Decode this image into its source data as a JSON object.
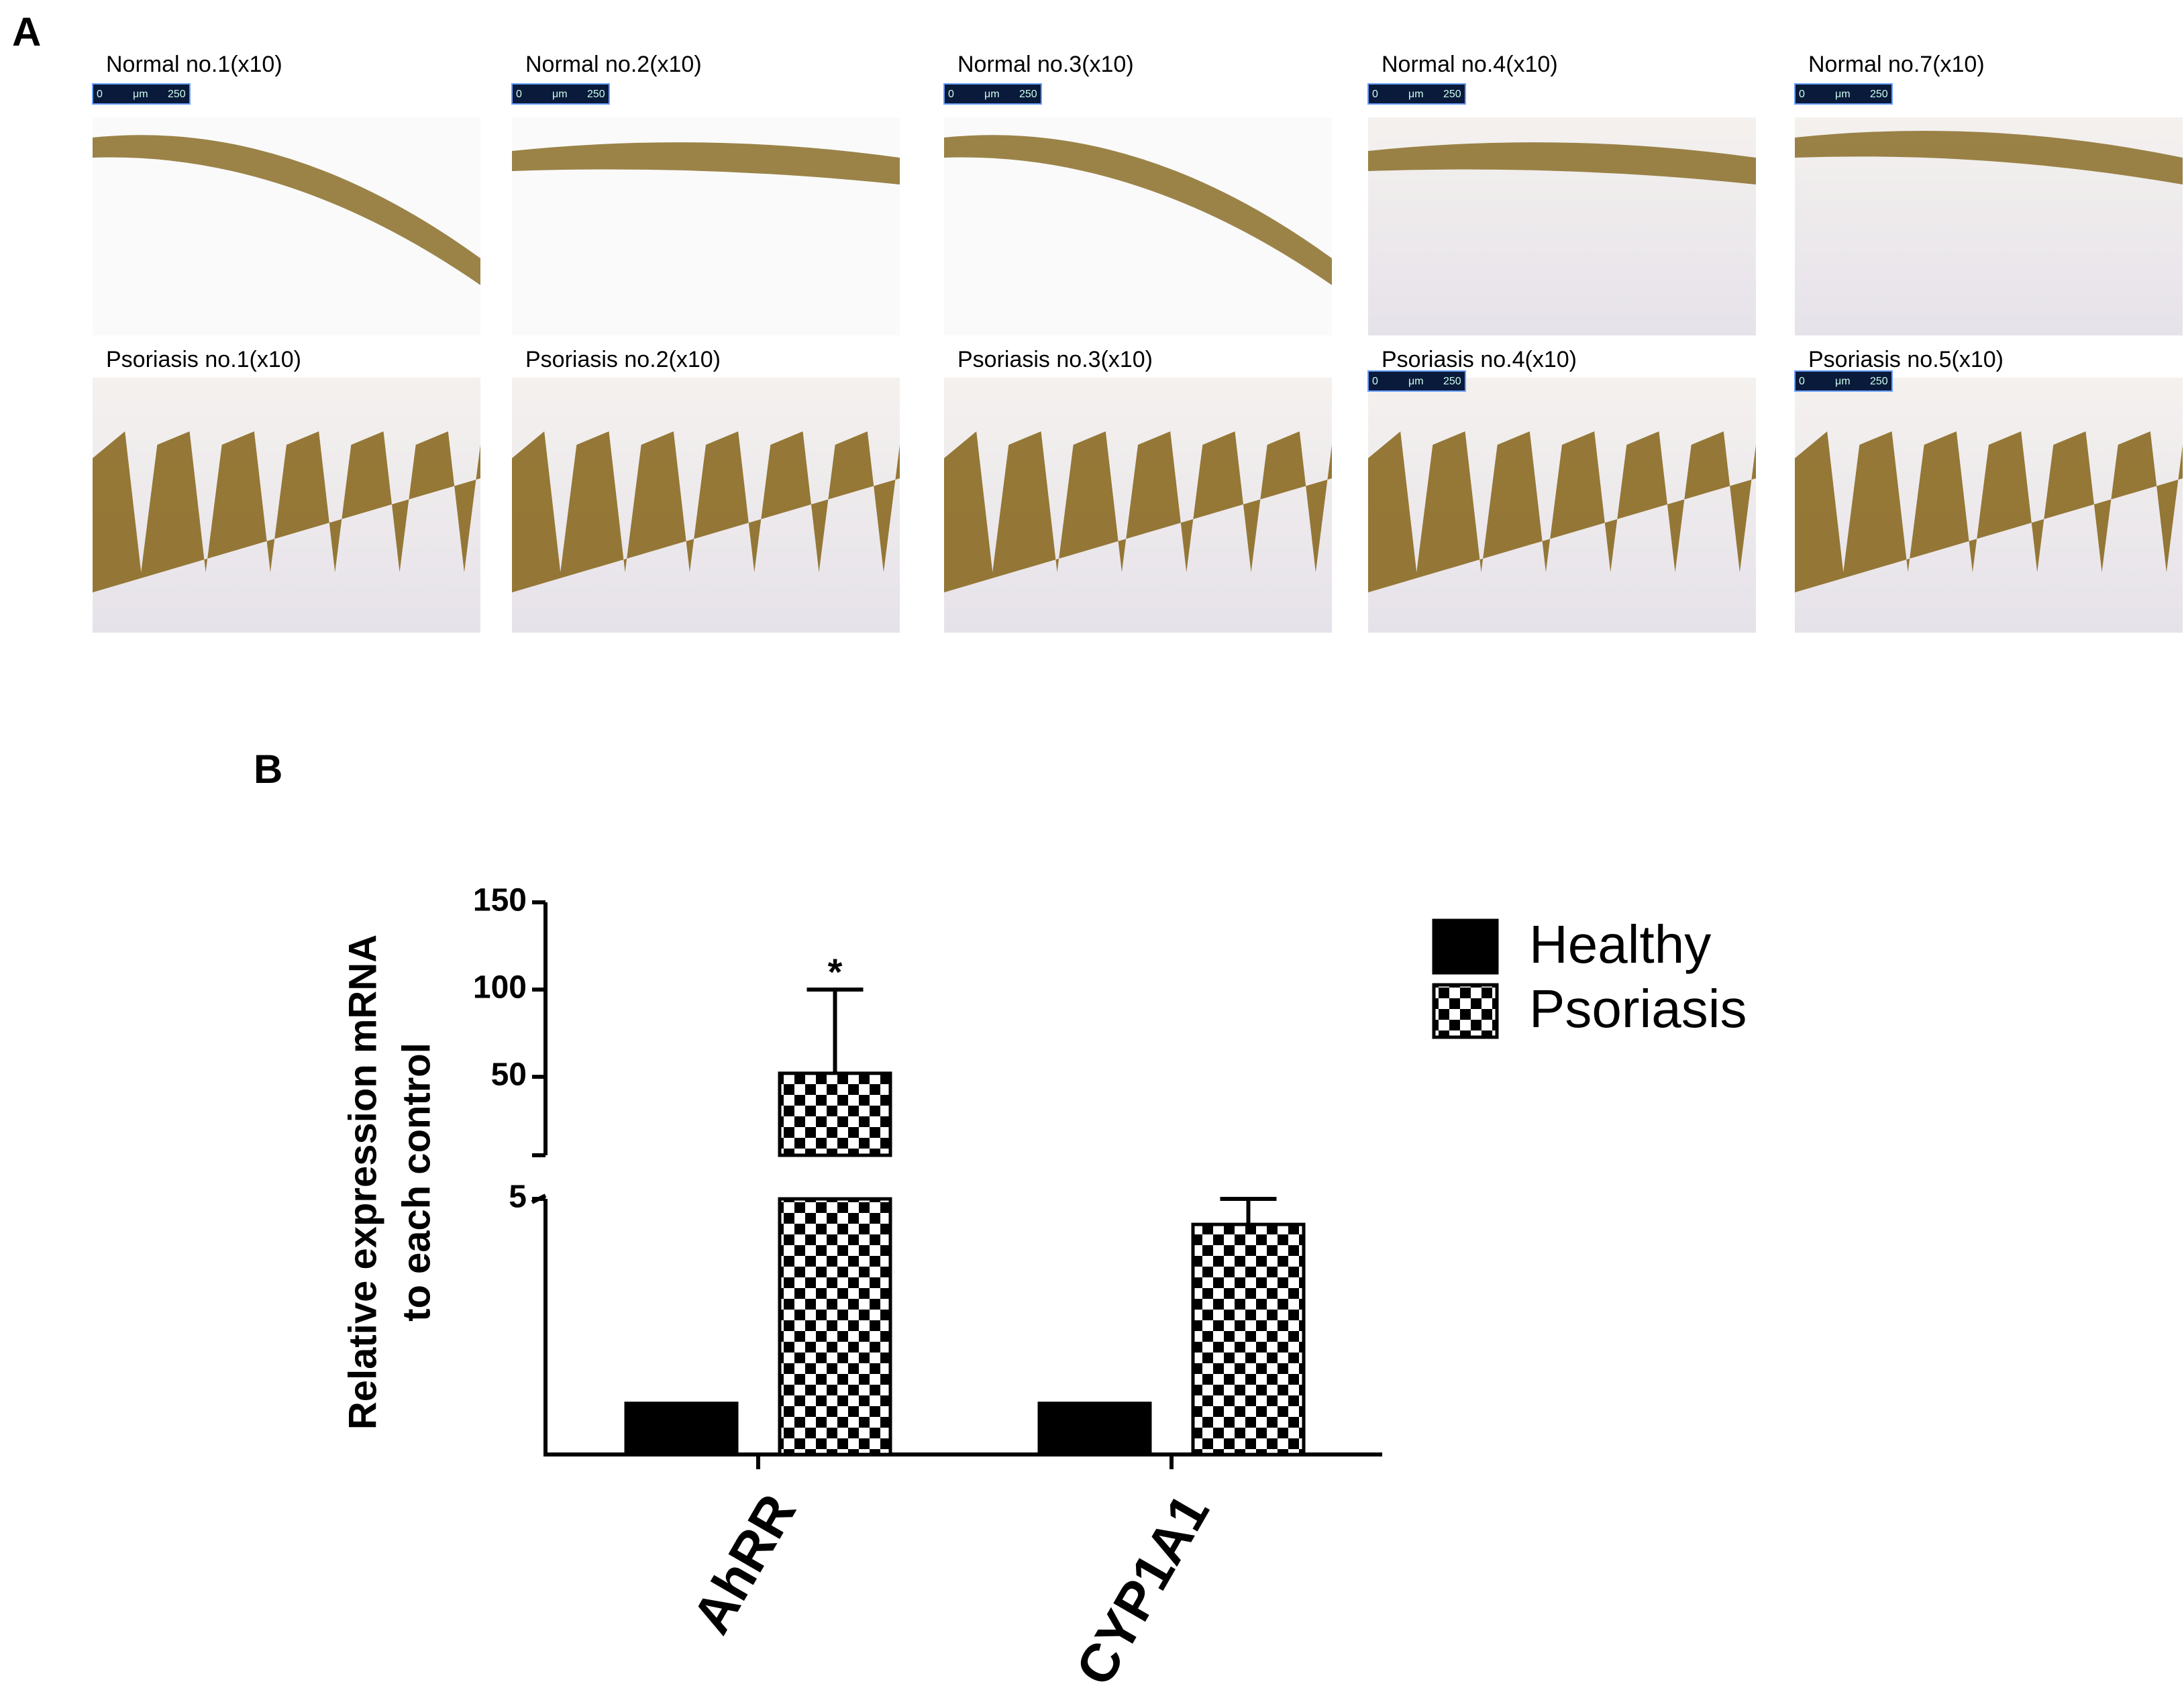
{
  "panel_a": {
    "label": "A",
    "normal": [
      "Normal no.1(x10)",
      "Normal no.2(x10)",
      "Normal no.3(x10)",
      "Normal no.4(x10)",
      "Normal no.7(x10)"
    ],
    "psoriasis": [
      "Psoriasis no.1(x10)",
      "Psoriasis no.2(x10)",
      "Psoriasis no.3(x10)",
      "Psoriasis no.4(x10)",
      "Psoriasis no.5(x10)"
    ],
    "scale_bar": {
      "start": "0",
      "unit": "μm",
      "end": "250"
    }
  },
  "panel_b": {
    "label": "B"
  },
  "chart_data": {
    "type": "bar",
    "y_label": [
      "Relative expression mRNA",
      "to each control"
    ],
    "categories": [
      "AhRR",
      "CYP1A1"
    ],
    "series": [
      {
        "name": "Healthy",
        "color": "#000000",
        "pattern": "solid",
        "values": [
          1,
          1
        ]
      },
      {
        "name": "Psoriasis",
        "color": "#000000",
        "pattern": "checker",
        "values": [
          52,
          4.5
        ],
        "errors": [
          48,
          0.5
        ]
      }
    ],
    "ylim_lower": [
      0,
      5
    ],
    "yticks_lower": [
      5
    ],
    "ylim_upper": [
      5,
      150
    ],
    "yticks_upper": [
      50,
      100,
      150
    ],
    "annotations": [
      {
        "text": "*",
        "category": 0,
        "series": 1
      }
    ],
    "legend": "top-right"
  }
}
